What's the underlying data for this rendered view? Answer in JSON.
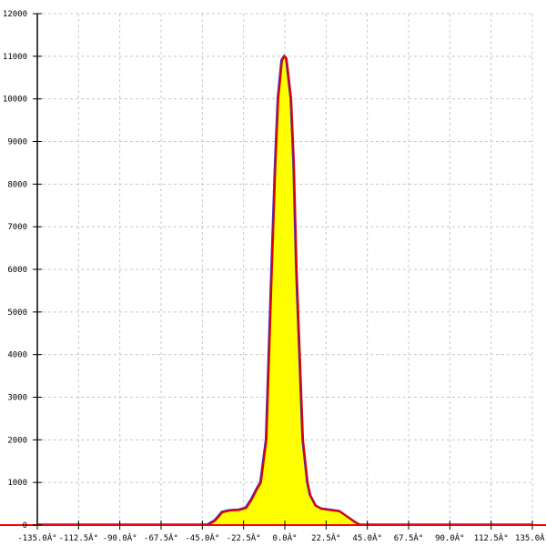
{
  "chart_data": {
    "type": "area",
    "title": "",
    "xlabel": "",
    "ylabel": "",
    "xlim": [
      -135,
      135
    ],
    "ylim": [
      0,
      12000
    ],
    "grid": true,
    "x_ticks": [
      -135,
      -112.5,
      -90,
      -67.5,
      -45,
      -22.5,
      0,
      22.5,
      45,
      67.5,
      90,
      112.5,
      135
    ],
    "x_tick_labels": [
      "-135.0Â°",
      "-112.5Â°",
      "-90.0Â°",
      "-67.5Â°",
      "-45.0Â°",
      "-22.5Â°",
      "0.0Â°",
      "22.5Â°",
      "45.0Â°",
      "67.5Â°",
      "90.0Â°",
      "112.5Â°",
      "135.0Â°"
    ],
    "y_ticks": [
      0,
      1000,
      2000,
      3000,
      4000,
      5000,
      6000,
      7000,
      8000,
      9000,
      10000,
      11000,
      12000
    ],
    "y_tick_labels": [
      "0",
      "1000",
      "2000",
      "3000",
      "4000",
      "5000",
      "6000",
      "7000",
      "8000",
      "9000",
      "10000",
      "11000",
      "12000"
    ],
    "series": [
      {
        "x": [
          -135,
          -42,
          -38,
          -34,
          -30,
          -25,
          -21,
          -18,
          -15,
          -13,
          -10,
          -7,
          -5,
          -3.5,
          -1.5,
          0,
          1,
          3.5,
          5,
          6.5,
          10,
          12.5,
          14,
          17,
          20,
          25,
          30,
          34,
          38,
          41,
          135
        ],
        "y": [
          0,
          0,
          100,
          300,
          340,
          350,
          400,
          600,
          850,
          1000,
          2000,
          6000,
          8500,
          10000,
          10900,
          11000,
          10950,
          10000,
          8500,
          6000,
          2000,
          1000,
          700,
          450,
          380,
          350,
          320,
          200,
          80,
          0,
          0
        ]
      }
    ],
    "colors": {
      "fill": "#ffff00",
      "line": "#e00000",
      "line_shadow": "#4030c0",
      "axis": "#000000",
      "grid": "#c8c8c8",
      "baseline": "#ff0000"
    }
  }
}
